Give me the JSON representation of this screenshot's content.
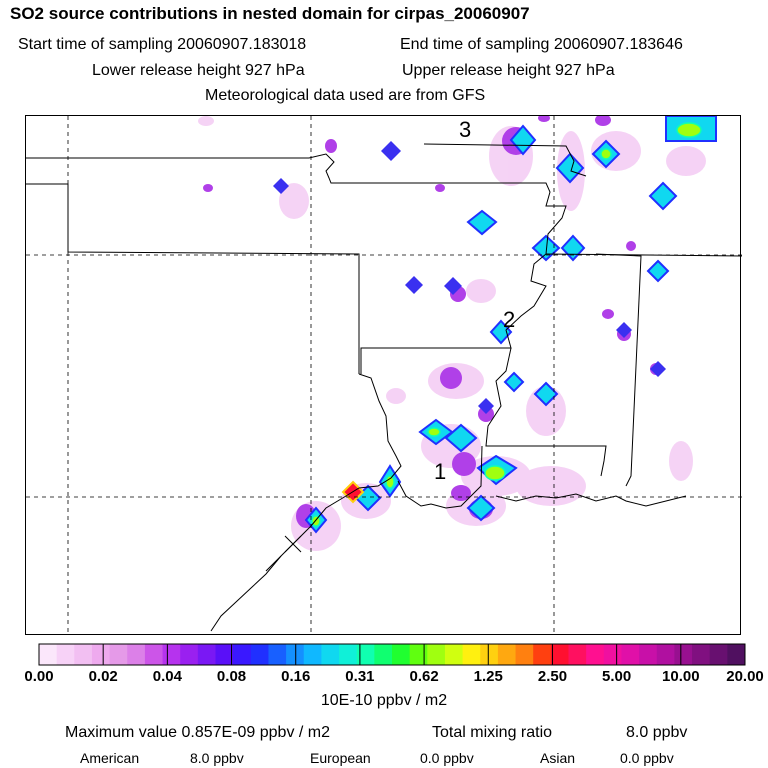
{
  "header": {
    "title": "SO2 source contributions in nested domain for cirpas_20060907",
    "start_time": "Start time of sampling 20060907.183018",
    "end_time": "End time of sampling 20060907.183646",
    "lower_height": "Lower release height  927 hPa",
    "upper_height": "Upper release height  927 hPa",
    "met_data": "Meteorological data used are from GFS"
  },
  "map": {
    "site_labels": [
      "1",
      "2",
      "3"
    ],
    "colors": {
      "border": "#000000",
      "gridline": "#000000"
    }
  },
  "colorbar": {
    "ticks": [
      "0.00",
      "0.02",
      "0.04",
      "0.08",
      "0.16",
      "0.31",
      "0.62",
      "1.25",
      "2.50",
      "5.00",
      "10.00",
      "20.00"
    ],
    "colors": [
      "#fbe7fb",
      "#f7d2f7",
      "#f2bff2",
      "#eeaaee",
      "#e59ae8",
      "#dc80e8",
      "#cc55e8",
      "#b633ee",
      "#9a20f0",
      "#7a18f4",
      "#5a10f8",
      "#3a18ff",
      "#2030ff",
      "#1860ff",
      "#1490ff",
      "#10b8ff",
      "#10d8f0",
      "#10f0d8",
      "#10ffb0",
      "#10ff70",
      "#20ff30",
      "#60ff10",
      "#a0ff10",
      "#d0ff10",
      "#fff010",
      "#ffd010",
      "#ffa810",
      "#ff8010",
      "#ff4010",
      "#ff1030",
      "#ff1060",
      "#ff1090",
      "#f010a0",
      "#e010a8",
      "#c810a8",
      "#b010a0",
      "#981090",
      "#801080",
      "#681070",
      "#501060"
    ],
    "units": "10E-10 ppbv / m2"
  },
  "footer": {
    "max_value": "Maximum value  0.857E-09 ppbv / m2",
    "total_label": "Total mixing ratio",
    "total_value": "8.0 ppbv",
    "american_label": "American",
    "american_value": "8.0 ppbv",
    "european_label": "European",
    "european_value": "0.0 ppbv",
    "asian_label": "Asian",
    "asian_value": "0.0 ppbv"
  }
}
